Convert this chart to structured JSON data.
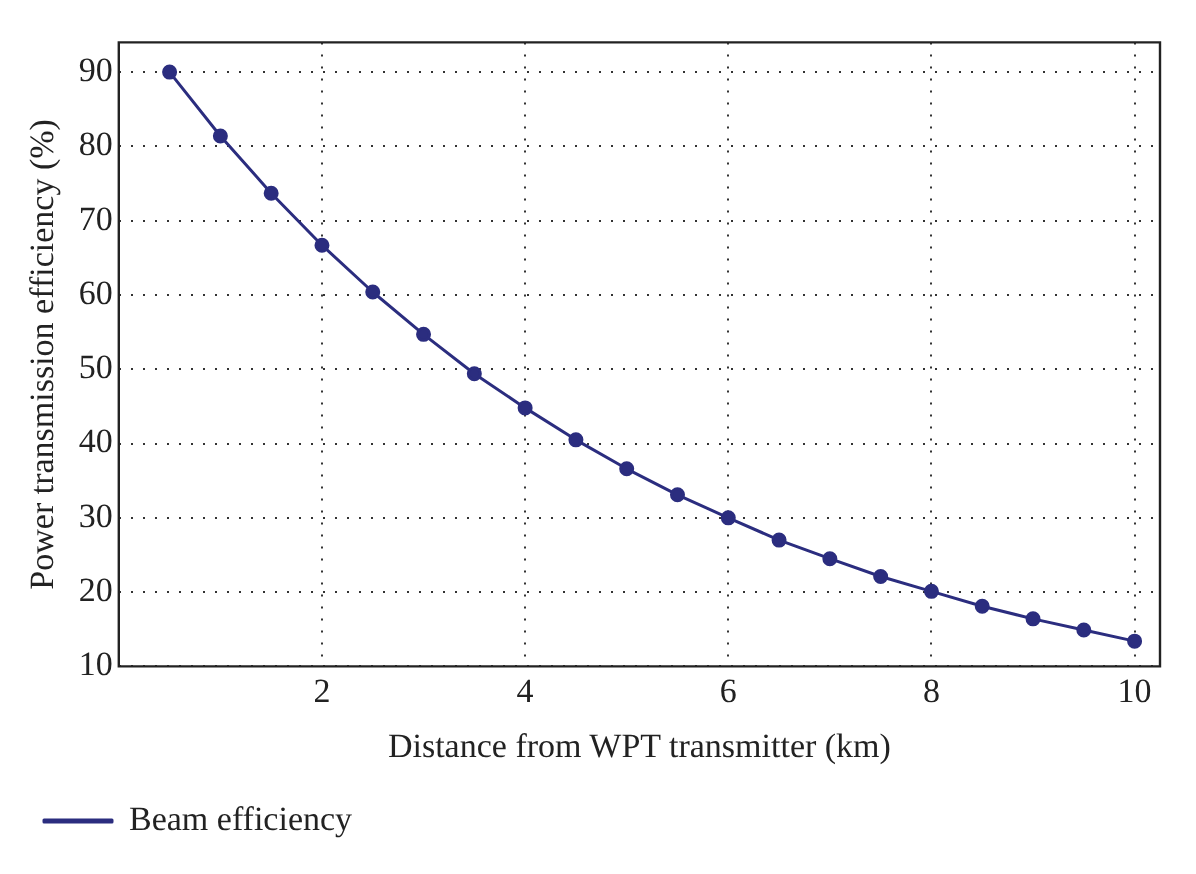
{
  "chart_data": {
    "type": "line",
    "xlabel": "Distance from WPT transmitter (km)",
    "ylabel": "Power transmission efficiency (%)",
    "x": [
      0.5,
      1,
      1.5,
      2,
      2.5,
      3,
      3.5,
      4,
      4.5,
      5,
      5.5,
      6,
      6.5,
      7,
      7.5,
      8,
      8.5,
      9,
      9.5,
      10
    ],
    "series": [
      {
        "name": "Beam efficiency",
        "color": "#2b2d7f",
        "values": [
          90,
          81.4,
          73.7,
          66.7,
          60.4,
          54.7,
          49.4,
          44.8,
          40.5,
          36.6,
          33.1,
          30.0,
          27.0,
          24.5,
          22.1,
          20.1,
          18.1,
          16.4,
          14.9,
          13.4
        ]
      }
    ],
    "xlim": [
      0,
      10.25
    ],
    "xticks": [
      2,
      4,
      6,
      8,
      10
    ],
    "ylim": [
      10,
      94
    ],
    "yticks": [
      10,
      20,
      30,
      40,
      50,
      60,
      70,
      80,
      90
    ],
    "grid": true,
    "legend": "bottom left",
    "marker": "circle",
    "line_style": "solid"
  }
}
